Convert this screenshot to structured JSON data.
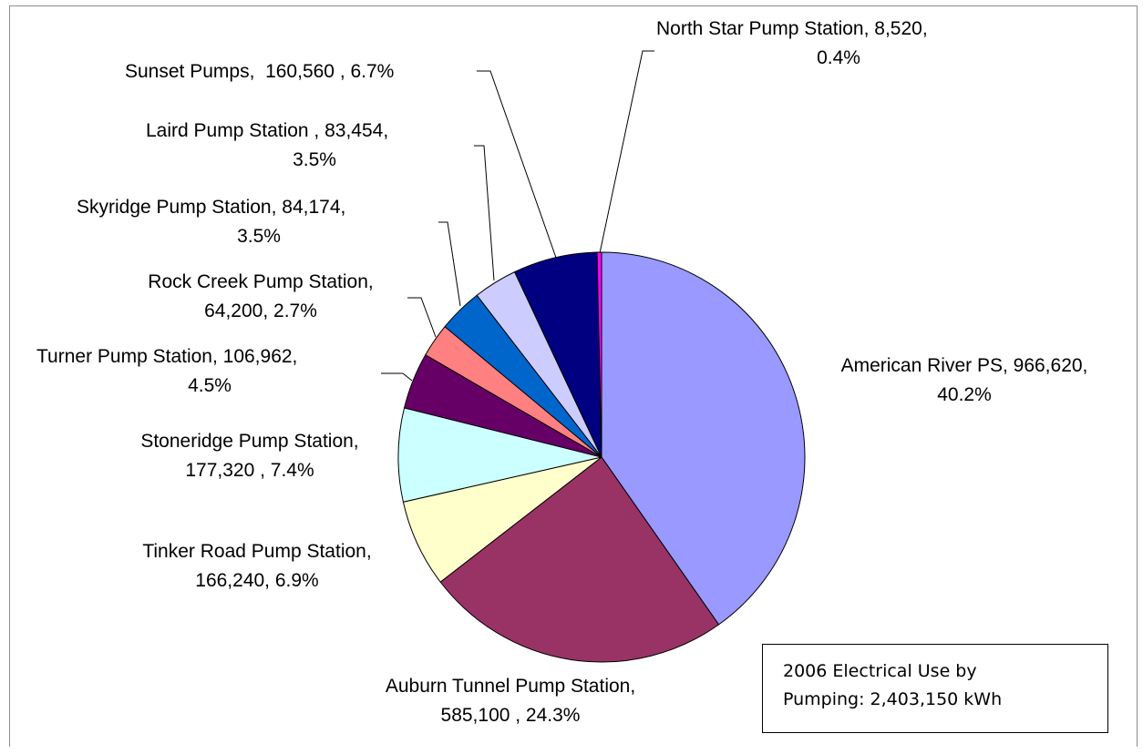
{
  "chart_data": {
    "type": "pie",
    "title_lines": [
      "2006 Electrical Use by",
      "Pumping: 2,403,150 kWh"
    ],
    "slices": [
      {
        "name": "American River PS",
        "value": 966620,
        "percent": 40.2,
        "color": "#9999ff",
        "label_lines": [
          "American River PS, 966,620,",
          "40.2%"
        ]
      },
      {
        "name": "Auburn Tunnel Pump Station",
        "value": 585100,
        "percent": 24.3,
        "color": "#993366",
        "label_lines": [
          "Auburn Tunnel Pump Station,",
          "585,100 , 24.3%"
        ]
      },
      {
        "name": "Tinker Road Pump Station",
        "value": 166240,
        "percent": 6.9,
        "color": "#ffffcc",
        "label_lines": [
          "Tinker Road Pump Station,",
          "166,240, 6.9%"
        ]
      },
      {
        "name": "Stoneridge Pump Station",
        "value": 177320,
        "percent": 7.4,
        "color": "#ccffff",
        "label_lines": [
          "Stoneridge Pump Station,",
          "177,320 , 7.4%"
        ]
      },
      {
        "name": "Turner Pump Station",
        "value": 106962,
        "percent": 4.5,
        "color": "#660066",
        "label_lines": [
          "Turner Pump Station, 106,962,",
          "4.5%"
        ]
      },
      {
        "name": "Rock Creek Pump Station",
        "value": 64200,
        "percent": 2.7,
        "color": "#ff8080",
        "label_lines": [
          "Rock Creek Pump Station,",
          "64,200, 2.7%"
        ]
      },
      {
        "name": "Skyridge Pump Station",
        "value": 84174,
        "percent": 3.5,
        "color": "#0066cc",
        "label_lines": [
          "Skyridge Pump Station, 84,174,",
          "3.5%"
        ]
      },
      {
        "name": "Laird Pump Station",
        "value": 83454,
        "percent": 3.5,
        "color": "#ccccff",
        "label_lines": [
          "Laird Pump Station , 83,454,",
          "3.5%"
        ]
      },
      {
        "name": "Sunset Pumps",
        "value": 160560,
        "percent": 6.7,
        "color": "#000080",
        "label_lines": [
          "Sunset Pumps,  160,560 , 6.7%"
        ]
      },
      {
        "name": "North Star Pump Station",
        "value": 8520,
        "percent": 0.4,
        "color": "#ff00ff",
        "label_lines": [
          "North Star Pump Station, 8,520,",
          "0.4%"
        ]
      }
    ],
    "legend": "none"
  }
}
